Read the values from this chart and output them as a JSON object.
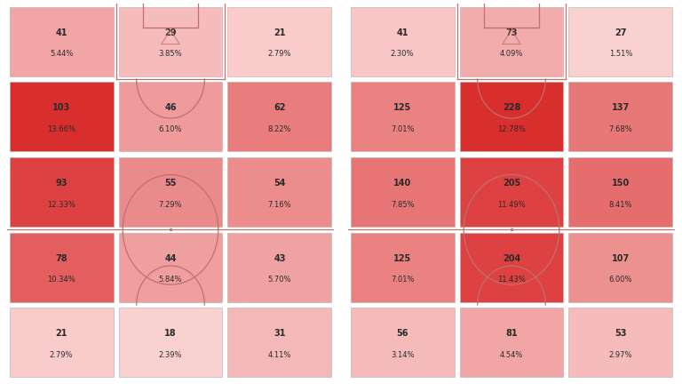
{
  "left_grid": {
    "values": [
      [
        41,
        29,
        21
      ],
      [
        103,
        46,
        62
      ],
      [
        93,
        55,
        54
      ],
      [
        78,
        44,
        43
      ],
      [
        21,
        18,
        31
      ]
    ],
    "percents": [
      [
        "5.44%",
        "3.85%",
        "2.79%"
      ],
      [
        "13.66%",
        "6.10%",
        "8.22%"
      ],
      [
        "12.33%",
        "7.29%",
        "7.16%"
      ],
      [
        "10.34%",
        "5.84%",
        "5.70%"
      ],
      [
        "2.79%",
        "2.39%",
        "4.11%"
      ]
    ]
  },
  "right_grid": {
    "values": [
      [
        41,
        73,
        27
      ],
      [
        125,
        228,
        137
      ],
      [
        140,
        205,
        150
      ],
      [
        125,
        204,
        107
      ],
      [
        56,
        81,
        53
      ]
    ],
    "percents": [
      [
        "2.30%",
        "4.09%",
        "1.51%"
      ],
      [
        "7.01%",
        "12.78%",
        "7.68%"
      ],
      [
        "7.85%",
        "11.49%",
        "8.41%"
      ],
      [
        "7.01%",
        "11.43%",
        "6.00%"
      ],
      [
        "3.14%",
        "4.54%",
        "2.97%"
      ]
    ]
  },
  "bg_color": "#ffffff",
  "cell_border_color": "#b0b0b0",
  "pitch_line_color": "#c07070",
  "text_color": "#2a2a2a",
  "color_low": [
    0.98,
    0.82,
    0.82
  ],
  "color_high": [
    0.85,
    0.18,
    0.18
  ]
}
